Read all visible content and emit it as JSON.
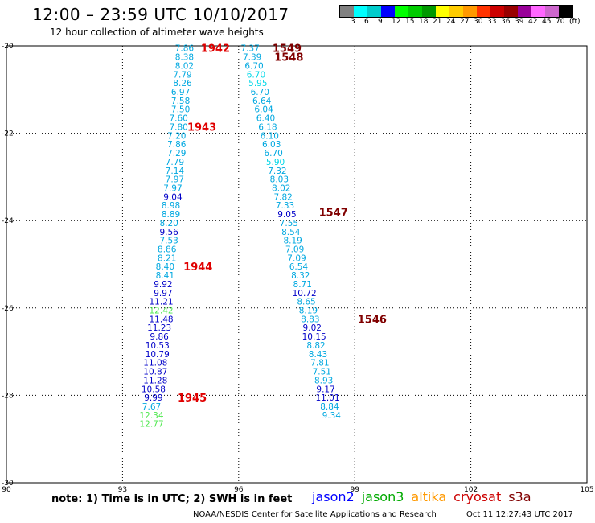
{
  "title": "12:00 – 23:59 UTC 10/10/2017",
  "subtitle": "12 hour collection of altimeter wave heights",
  "colorbar": {
    "colors": [
      "#808080",
      "#00ffff",
      "#00cccc",
      "#0000ff",
      "#00ff00",
      "#00cc00",
      "#009900",
      "#ffff00",
      "#ffcc00",
      "#ff9900",
      "#ff3300",
      "#cc0000",
      "#990000",
      "#990099",
      "#ff66ff",
      "#cc66cc",
      "#000000"
    ],
    "labels": [
      "3",
      "6",
      "9",
      "12",
      "15",
      "18",
      "21",
      "24",
      "27",
      "30",
      "33",
      "36",
      "39",
      "42",
      "45",
      "70",
      "(ft)"
    ]
  },
  "chart_data": {
    "type": "scatter",
    "xlim": [
      90,
      105
    ],
    "ylim": [
      -30,
      -20
    ],
    "x_ticks": [
      "90",
      "93",
      "96",
      "99",
      "102",
      "105"
    ],
    "y_ticks": [
      "-20",
      "-22",
      "-24",
      "-26",
      "-28",
      "-30"
    ],
    "grid": true,
    "left_track": [
      {
        "lon": 94.6,
        "lat": -20.05,
        "swh": "7.86",
        "sat": "jason3"
      },
      {
        "lon": 94.6,
        "lat": -20.25,
        "swh": "8.38",
        "sat": "jason3"
      },
      {
        "lon": 94.6,
        "lat": -20.45,
        "swh": "8.02",
        "sat": "jason3"
      },
      {
        "lon": 94.55,
        "lat": -20.65,
        "swh": "7.79",
        "sat": "jason3"
      },
      {
        "lon": 94.55,
        "lat": -20.85,
        "swh": "8.26",
        "sat": "jason3"
      },
      {
        "lon": 94.5,
        "lat": -21.05,
        "swh": "6.97",
        "sat": "jason3"
      },
      {
        "lon": 94.5,
        "lat": -21.25,
        "swh": "7.58",
        "sat": "jason3"
      },
      {
        "lon": 94.5,
        "lat": -21.45,
        "swh": "7.50",
        "sat": "jason3"
      },
      {
        "lon": 94.45,
        "lat": -21.65,
        "swh": "7.60",
        "sat": "jason3"
      },
      {
        "lon": 94.45,
        "lat": -21.85,
        "swh": "7.80",
        "sat": "jason3"
      },
      {
        "lon": 94.4,
        "lat": -22.05,
        "swh": "7.20",
        "sat": "jason3"
      },
      {
        "lon": 94.4,
        "lat": -22.25,
        "swh": "7.86",
        "sat": "jason3"
      },
      {
        "lon": 94.4,
        "lat": -22.45,
        "swh": "7.29",
        "sat": "jason3"
      },
      {
        "lon": 94.35,
        "lat": -22.65,
        "swh": "7.79",
        "sat": "jason3"
      },
      {
        "lon": 94.35,
        "lat": -22.85,
        "swh": "7.14",
        "sat": "jason3"
      },
      {
        "lon": 94.35,
        "lat": -23.05,
        "swh": "7.97",
        "sat": "jason3"
      },
      {
        "lon": 94.3,
        "lat": -23.25,
        "swh": "7.97",
        "sat": "jason3"
      },
      {
        "lon": 94.3,
        "lat": -23.45,
        "swh": "9.04",
        "sat": "jason2"
      },
      {
        "lon": 94.25,
        "lat": -23.65,
        "swh": "8.98",
        "sat": "jason3"
      },
      {
        "lon": 94.25,
        "lat": -23.85,
        "swh": "8.89",
        "sat": "jason3"
      },
      {
        "lon": 94.2,
        "lat": -24.05,
        "swh": "8.20",
        "sat": "jason3"
      },
      {
        "lon": 94.2,
        "lat": -24.25,
        "swh": "9.56",
        "sat": "jason2"
      },
      {
        "lon": 94.2,
        "lat": -24.45,
        "swh": "7.53",
        "sat": "jason3"
      },
      {
        "lon": 94.15,
        "lat": -24.65,
        "swh": "8.86",
        "sat": "jason3"
      },
      {
        "lon": 94.15,
        "lat": -24.85,
        "swh": "8.21",
        "sat": "jason3"
      },
      {
        "lon": 94.1,
        "lat": -25.05,
        "swh": "8.40",
        "sat": "jason3"
      },
      {
        "lon": 94.1,
        "lat": -25.25,
        "swh": "8.41",
        "sat": "jason3"
      },
      {
        "lon": 94.05,
        "lat": -25.45,
        "swh": "9.92",
        "sat": "jason2"
      },
      {
        "lon": 94.05,
        "lat": -25.65,
        "swh": "9.97",
        "sat": "jason2"
      },
      {
        "lon": 94.0,
        "lat": -25.85,
        "swh": "11.21",
        "sat": "jason2"
      },
      {
        "lon": 94.0,
        "lat": -26.05,
        "swh": "12.42",
        "sat": "green"
      },
      {
        "lon": 94.0,
        "lat": -26.25,
        "swh": "11.48",
        "sat": "jason2"
      },
      {
        "lon": 93.95,
        "lat": -26.45,
        "swh": "11.23",
        "sat": "jason2"
      },
      {
        "lon": 93.95,
        "lat": -26.65,
        "swh": "9.86",
        "sat": "jason2"
      },
      {
        "lon": 93.9,
        "lat": -26.85,
        "swh": "10.53",
        "sat": "jason2"
      },
      {
        "lon": 93.9,
        "lat": -27.05,
        "swh": "10.79",
        "sat": "jason2"
      },
      {
        "lon": 93.85,
        "lat": -27.25,
        "swh": "11.08",
        "sat": "jason2"
      },
      {
        "lon": 93.85,
        "lat": -27.45,
        "swh": "10.87",
        "sat": "jason2"
      },
      {
        "lon": 93.85,
        "lat": -27.65,
        "swh": "11.28",
        "sat": "jason2"
      },
      {
        "lon": 93.8,
        "lat": -27.85,
        "swh": "10.58",
        "sat": "jason2"
      },
      {
        "lon": 93.8,
        "lat": -28.05,
        "swh": "9.99",
        "sat": "jason2"
      },
      {
        "lon": 93.75,
        "lat": -28.25,
        "swh": "7.67",
        "sat": "jason3"
      },
      {
        "lon": 93.75,
        "lat": -28.45,
        "swh": "12.34",
        "sat": "green"
      },
      {
        "lon": 93.75,
        "lat": -28.65,
        "swh": "12.77",
        "sat": "green"
      }
    ],
    "right_track": [
      {
        "lon": 96.3,
        "lat": -20.05,
        "swh": "7.37",
        "sat": "jason3"
      },
      {
        "lon": 96.35,
        "lat": -20.25,
        "swh": "7.39",
        "sat": "jason3"
      },
      {
        "lon": 96.4,
        "lat": -20.45,
        "swh": "6.70",
        "sat": "jason3"
      },
      {
        "lon": 96.45,
        "lat": -20.65,
        "swh": "6.70",
        "sat": "cyan"
      },
      {
        "lon": 96.5,
        "lat": -20.85,
        "swh": "5.95",
        "sat": "cyan"
      },
      {
        "lon": 96.55,
        "lat": -21.05,
        "swh": "6.70",
        "sat": "jason3"
      },
      {
        "lon": 96.6,
        "lat": -21.25,
        "swh": "6.64",
        "sat": "jason3"
      },
      {
        "lon": 96.65,
        "lat": -21.45,
        "swh": "6.04",
        "sat": "jason3"
      },
      {
        "lon": 96.7,
        "lat": -21.65,
        "swh": "6.40",
        "sat": "jason3"
      },
      {
        "lon": 96.75,
        "lat": -21.85,
        "swh": "6.18",
        "sat": "jason3"
      },
      {
        "lon": 96.8,
        "lat": -22.05,
        "swh": "6.10",
        "sat": "jason3"
      },
      {
        "lon": 96.85,
        "lat": -22.25,
        "swh": "6.03",
        "sat": "jason3"
      },
      {
        "lon": 96.9,
        "lat": -22.45,
        "swh": "6.70",
        "sat": "jason3"
      },
      {
        "lon": 96.95,
        "lat": -22.65,
        "swh": "5.90",
        "sat": "cyan"
      },
      {
        "lon": 97.0,
        "lat": -22.85,
        "swh": "7.32",
        "sat": "jason3"
      },
      {
        "lon": 97.05,
        "lat": -23.05,
        "swh": "8.03",
        "sat": "jason3"
      },
      {
        "lon": 97.1,
        "lat": -23.25,
        "swh": "8.02",
        "sat": "jason3"
      },
      {
        "lon": 97.15,
        "lat": -23.45,
        "swh": "7.82",
        "sat": "jason3"
      },
      {
        "lon": 97.2,
        "lat": -23.65,
        "swh": "7.33",
        "sat": "jason3"
      },
      {
        "lon": 97.25,
        "lat": -23.85,
        "swh": "9.05",
        "sat": "jason2"
      },
      {
        "lon": 97.3,
        "lat": -24.05,
        "swh": "7.55",
        "sat": "jason3"
      },
      {
        "lon": 97.35,
        "lat": -24.25,
        "swh": "8.54",
        "sat": "jason3"
      },
      {
        "lon": 97.4,
        "lat": -24.45,
        "swh": "8.19",
        "sat": "jason3"
      },
      {
        "lon": 97.45,
        "lat": -24.65,
        "swh": "7.09",
        "sat": "jason3"
      },
      {
        "lon": 97.5,
        "lat": -24.85,
        "swh": "7.09",
        "sat": "jason3"
      },
      {
        "lon": 97.55,
        "lat": -25.05,
        "swh": "6.54",
        "sat": "jason3"
      },
      {
        "lon": 97.6,
        "lat": -25.25,
        "swh": "8.32",
        "sat": "jason3"
      },
      {
        "lon": 97.65,
        "lat": -25.45,
        "swh": "8.71",
        "sat": "jason3"
      },
      {
        "lon": 97.7,
        "lat": -25.65,
        "swh": "10.72",
        "sat": "jason2"
      },
      {
        "lon": 97.75,
        "lat": -25.85,
        "swh": "8.65",
        "sat": "jason3"
      },
      {
        "lon": 97.8,
        "lat": -26.05,
        "swh": "8.19",
        "sat": "jason3"
      },
      {
        "lon": 97.85,
        "lat": -26.25,
        "swh": "8.83",
        "sat": "jason3"
      },
      {
        "lon": 97.9,
        "lat": -26.45,
        "swh": "9.02",
        "sat": "jason2"
      },
      {
        "lon": 97.95,
        "lat": -26.65,
        "swh": "10.15",
        "sat": "jason2"
      },
      {
        "lon": 98.0,
        "lat": -26.85,
        "swh": "8.82",
        "sat": "jason3"
      },
      {
        "lon": 98.05,
        "lat": -27.05,
        "swh": "8.43",
        "sat": "jason3"
      },
      {
        "lon": 98.1,
        "lat": -27.25,
        "swh": "7.81",
        "sat": "jason3"
      },
      {
        "lon": 98.15,
        "lat": -27.45,
        "swh": "7.51",
        "sat": "jason3"
      },
      {
        "lon": 98.2,
        "lat": -27.65,
        "swh": "8.93",
        "sat": "jason3"
      },
      {
        "lon": 98.25,
        "lat": -27.85,
        "swh": "9.17",
        "sat": "jason2"
      },
      {
        "lon": 98.3,
        "lat": -28.05,
        "swh": "11.01",
        "sat": "jason2"
      },
      {
        "lon": 98.35,
        "lat": -28.25,
        "swh": "8.84",
        "sat": "jason3"
      },
      {
        "lon": 98.4,
        "lat": -28.45,
        "swh": "9.34",
        "sat": "jason3"
      }
    ],
    "time_labels": [
      {
        "text": "1942",
        "lon": 95.4,
        "lat": -20.05,
        "color": "#e00000"
      },
      {
        "text": "1549",
        "lon": 97.25,
        "lat": -20.05,
        "color": "#800000"
      },
      {
        "text": "1548",
        "lon": 97.3,
        "lat": -20.25,
        "color": "#800000"
      },
      {
        "text": "1943",
        "lon": 95.05,
        "lat": -21.85,
        "color": "#e00000"
      },
      {
        "text": "1547",
        "lon": 98.45,
        "lat": -23.8,
        "color": "#800000"
      },
      {
        "text": "1944",
        "lon": 94.95,
        "lat": -25.05,
        "color": "#e00000"
      },
      {
        "text": "1546",
        "lon": 99.45,
        "lat": -26.25,
        "color": "#800000"
      },
      {
        "text": "1945",
        "lon": 94.8,
        "lat": -28.05,
        "color": "#e00000"
      }
    ],
    "colors": {
      "jason2": "#0000c8",
      "jason3": "#00a8e0",
      "cyan": "#00d8e8",
      "green": "#50e850"
    }
  },
  "note": "note: 1) Time is in UTC; 2) SWH is in feet",
  "satellites": [
    {
      "name": "jason2",
      "color": "#0000ff"
    },
    {
      "name": "jason3",
      "color": "#00aa00"
    },
    {
      "name": "altika",
      "color": "#ff9900"
    },
    {
      "name": "cryosat",
      "color": "#cc0000"
    },
    {
      "name": "s3a",
      "color": "#800000"
    }
  ],
  "credit": "NOAA/NESDIS Center for Satellite Applications and Research",
  "timestamp": "Oct 11 12:27:43 UTC 2017"
}
